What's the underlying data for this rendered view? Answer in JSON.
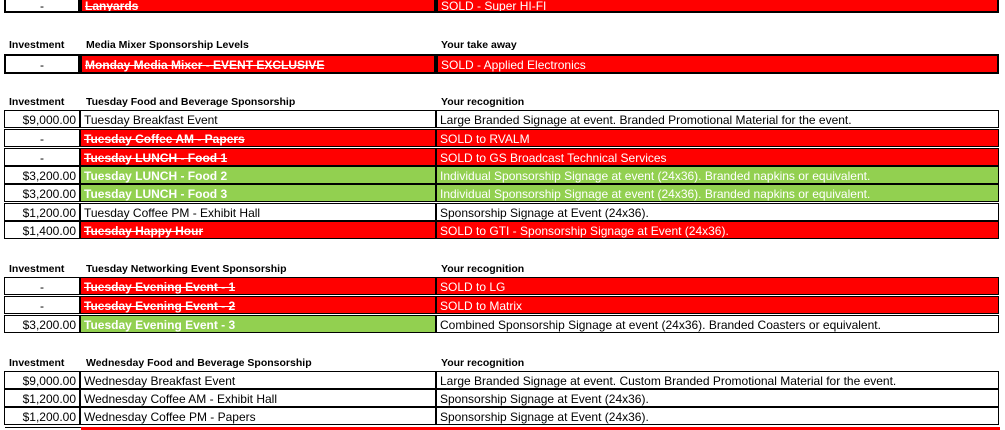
{
  "top_row": {
    "investment": "-",
    "name": "Lanyards",
    "recognition": "SOLD - Super HI-FI"
  },
  "media_mixer": {
    "headers": {
      "investment": "Investment",
      "title": "Media Mixer Sponsorship Levels",
      "recognition": "Your take away"
    },
    "rows": [
      {
        "investment": "-",
        "name": "Monday Media Mixer - EVENT EXCLUSIVE",
        "recognition": "SOLD - Applied Electronics",
        "status": "sold"
      }
    ]
  },
  "tuesday_food": {
    "headers": {
      "investment": "Investment",
      "title": "Tuesday Food and Beverage Sponsorship",
      "recognition": "Your recognition"
    },
    "rows": [
      {
        "investment": "$9,000.00",
        "name": "Tuesday Breakfast Event",
        "recognition": "Large Branded Signage at event. Branded Promotional Material for the event.",
        "status": "available"
      },
      {
        "investment": "-",
        "name": "Tuesday  Coffee AM - Papers",
        "recognition": "SOLD to RVALM",
        "status": "sold"
      },
      {
        "investment": "-",
        "name": "Tuesday  LUNCH - Food 1",
        "recognition": "SOLD to GS Broadcast Technical Services",
        "status": "sold"
      },
      {
        "investment": "$3,200.00",
        "name": "Tuesday  LUNCH - Food 2",
        "recognition": "Individual Sponsorship Signage at event (24x36). Branded napkins or equivalent.",
        "status": "highlight"
      },
      {
        "investment": "$3,200.00",
        "name": "Tuesday  LUNCH - Food 3",
        "recognition": "Individual Sponsorship Signage at event (24x36). Branded napkins or equivalent.",
        "status": "highlight"
      },
      {
        "investment": "$1,200.00",
        "name": "Tuesday  Coffee PM - Exhibit Hall",
        "recognition": "Sponsorship Signage at Event (24x36).",
        "status": "available"
      },
      {
        "investment": "$1,400.00",
        "name": "Tuesday Happy Hour",
        "recognition": "SOLD to GTI - Sponsorship Signage at Event (24x36).",
        "status": "sold"
      }
    ]
  },
  "tuesday_networking": {
    "headers": {
      "investment": "Investment",
      "title": "Tuesday Networking Event Sponsorship",
      "recognition": "Your recognition"
    },
    "rows": [
      {
        "investment": "-",
        "name": "Tuesday Evening Event - 1",
        "recognition": "SOLD to LG",
        "status": "sold"
      },
      {
        "investment": "-",
        "name": "Tuesday Evening Event - 2",
        "recognition": "SOLD to Matrix",
        "status": "sold"
      },
      {
        "investment": "$3,200.00",
        "name": "Tuesday Evening Event - 3",
        "recognition": "Combined Sponsorship Signage at event (24x36). Branded Coasters or equivalent.",
        "status": "highlight"
      }
    ]
  },
  "wednesday_food": {
    "headers": {
      "investment": "Investment",
      "title": "Wednesday Food and Beverage Sponsorship",
      "recognition": "Your recognition"
    },
    "rows": [
      {
        "investment": "$9,000.00",
        "name": "Wednesday Breakfast Event",
        "recognition": "Large Branded Signage at event. Custom Branded Promotional Material for the event.",
        "status": "available"
      },
      {
        "investment": "$1,200.00",
        "name": "Wednesday Coffee AM - Exhibit Hall",
        "recognition": "Sponsorship Signage at Event (24x36).",
        "status": "available"
      },
      {
        "investment": "$1,200.00",
        "name": "Wednesday Coffee PM - Papers",
        "recognition": "Sponsorship Signage at Event (24x36).",
        "status": "available"
      }
    ]
  },
  "colors": {
    "sold": "#ff0000",
    "highlight": "#92d050",
    "available": "#ffffff"
  }
}
